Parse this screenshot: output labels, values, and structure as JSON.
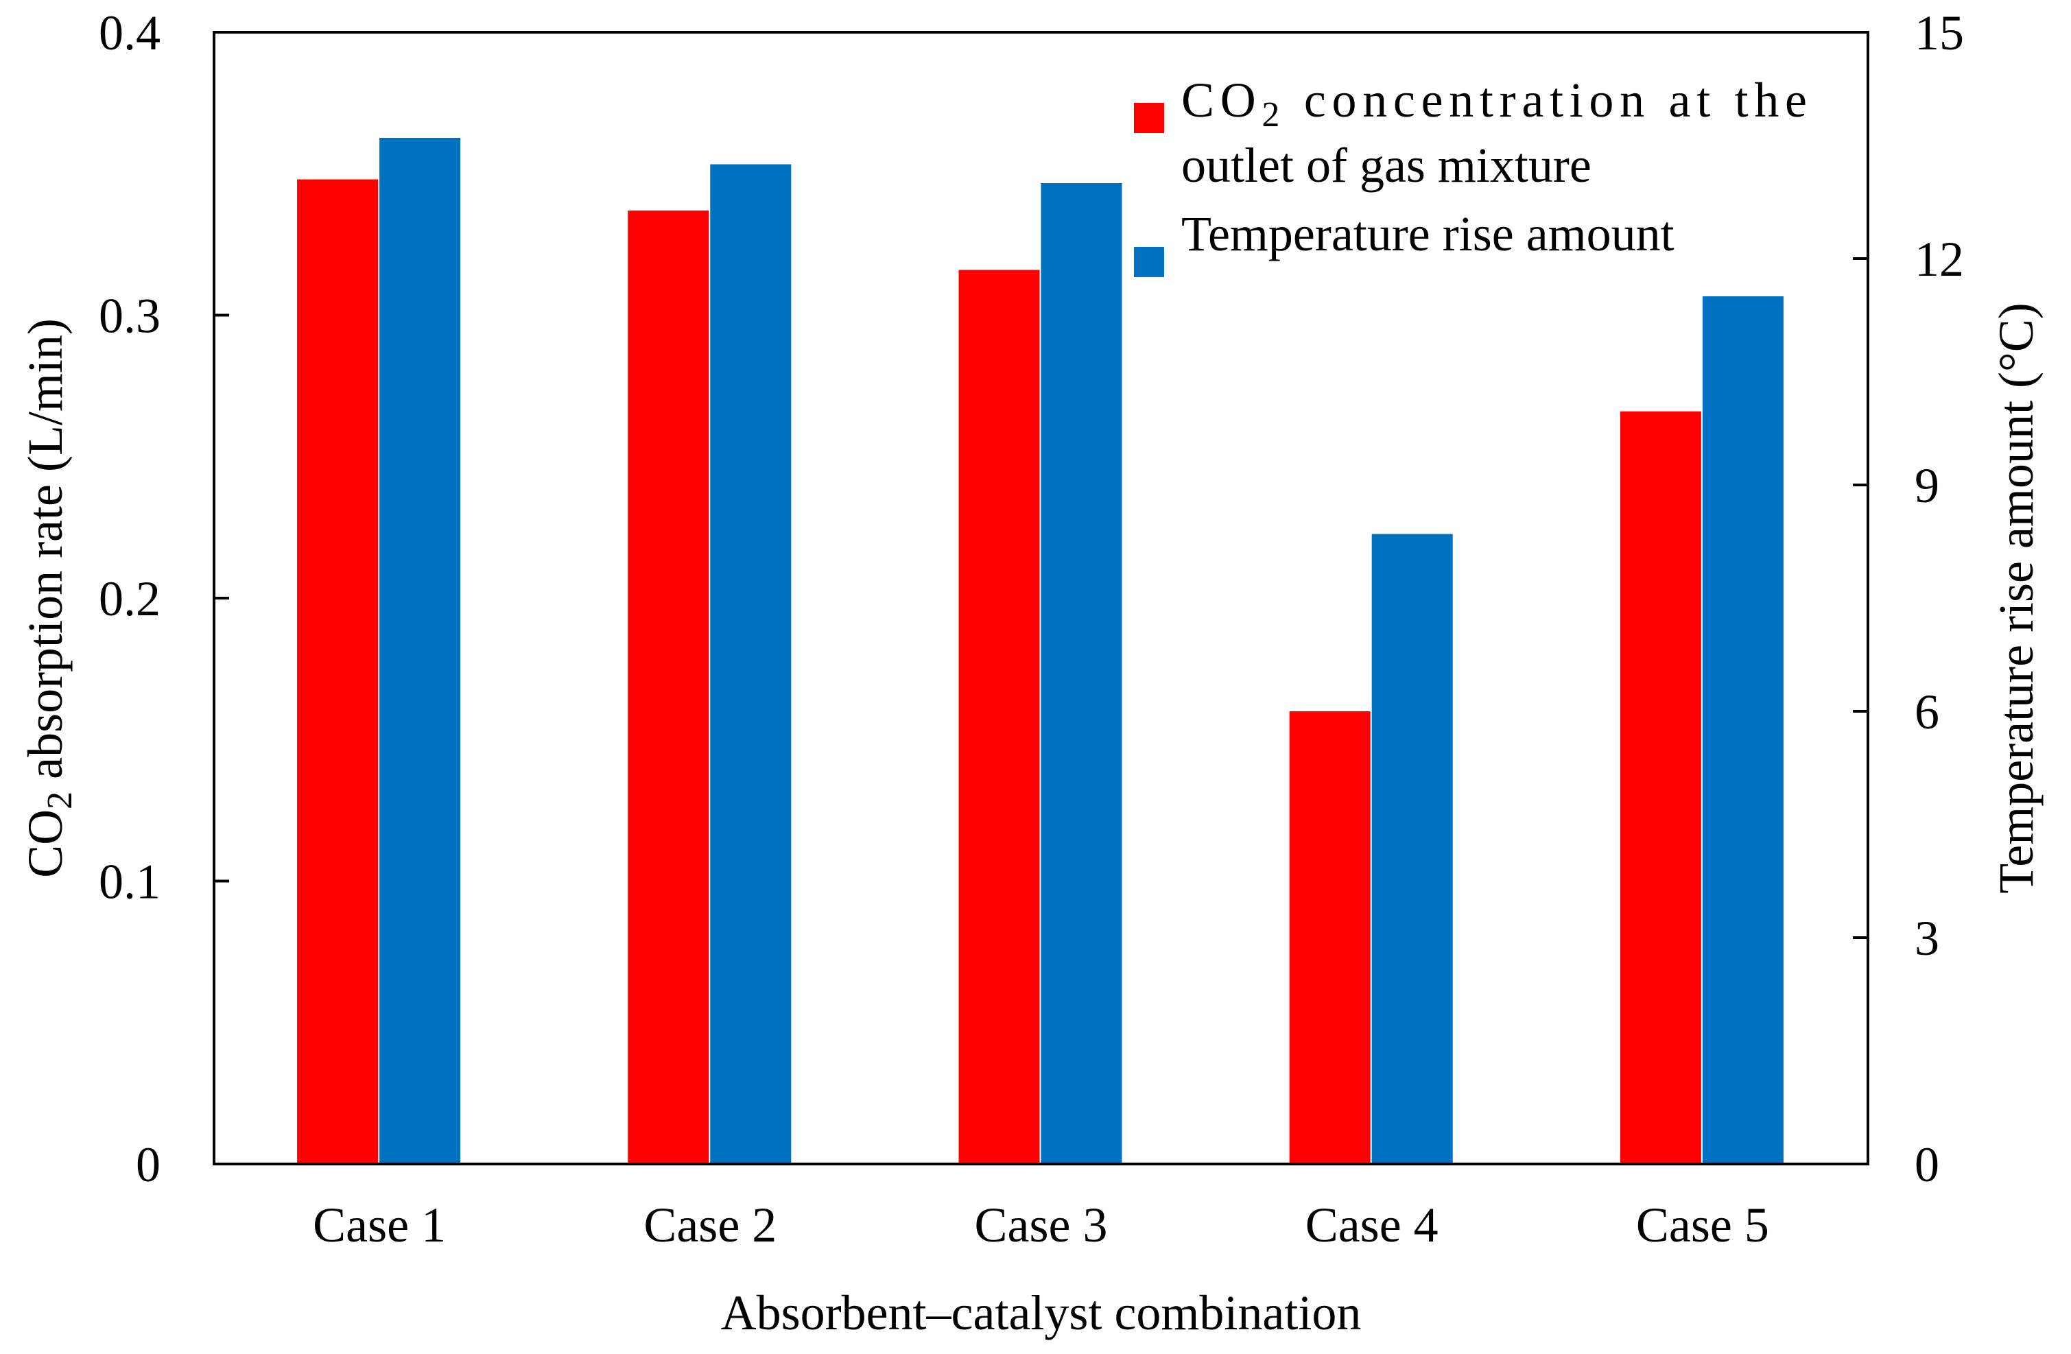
{
  "chart_data": {
    "type": "bar",
    "title": "",
    "xlabel": "Absorbent–catalyst combination",
    "ylabel_left": {
      "main": "CO",
      "sub": "2",
      "rest": " absorption rate (L/min)"
    },
    "ylabel_right": "Temperature rise amount (°C)",
    "categories": [
      "Case 1",
      "Case 2",
      "Case 3",
      "Case 4",
      "Case 5"
    ],
    "left_axis": {
      "range": [
        0,
        0.4
      ],
      "ticks": [
        "0",
        "0.1",
        "0.2",
        "0.3",
        "0.4"
      ],
      "tick_values": [
        0,
        0.1,
        0.2,
        0.3,
        0.4
      ]
    },
    "right_axis": {
      "range": [
        0,
        15
      ],
      "ticks": [
        "0",
        "3",
        "6",
        "9",
        "12",
        "15"
      ],
      "tick_values": [
        0,
        3,
        6,
        9,
        12,
        15
      ]
    },
    "series": [
      {
        "name": "CO2 concentration at the outlet of gas mixture",
        "legend_lines": [
          {
            "main": "CO",
            "sub": "2",
            "rest": " concentration at the"
          },
          {
            "main": "outlet of gas mixture",
            "sub": "",
            "rest": ""
          }
        ],
        "axis": "left",
        "color": "#ff0000",
        "values": [
          0.348,
          0.337,
          0.316,
          0.16,
          0.266
        ]
      },
      {
        "name": "Temperature rise amount",
        "legend_lines": [
          {
            "main": "Temperature rise amount",
            "sub": "",
            "rest": ""
          }
        ],
        "axis": "right",
        "color": "#0070c0",
        "values": [
          13.6,
          13.25,
          13.0,
          8.35,
          11.5
        ]
      }
    ],
    "grid": false,
    "legend_position": "top-right"
  }
}
